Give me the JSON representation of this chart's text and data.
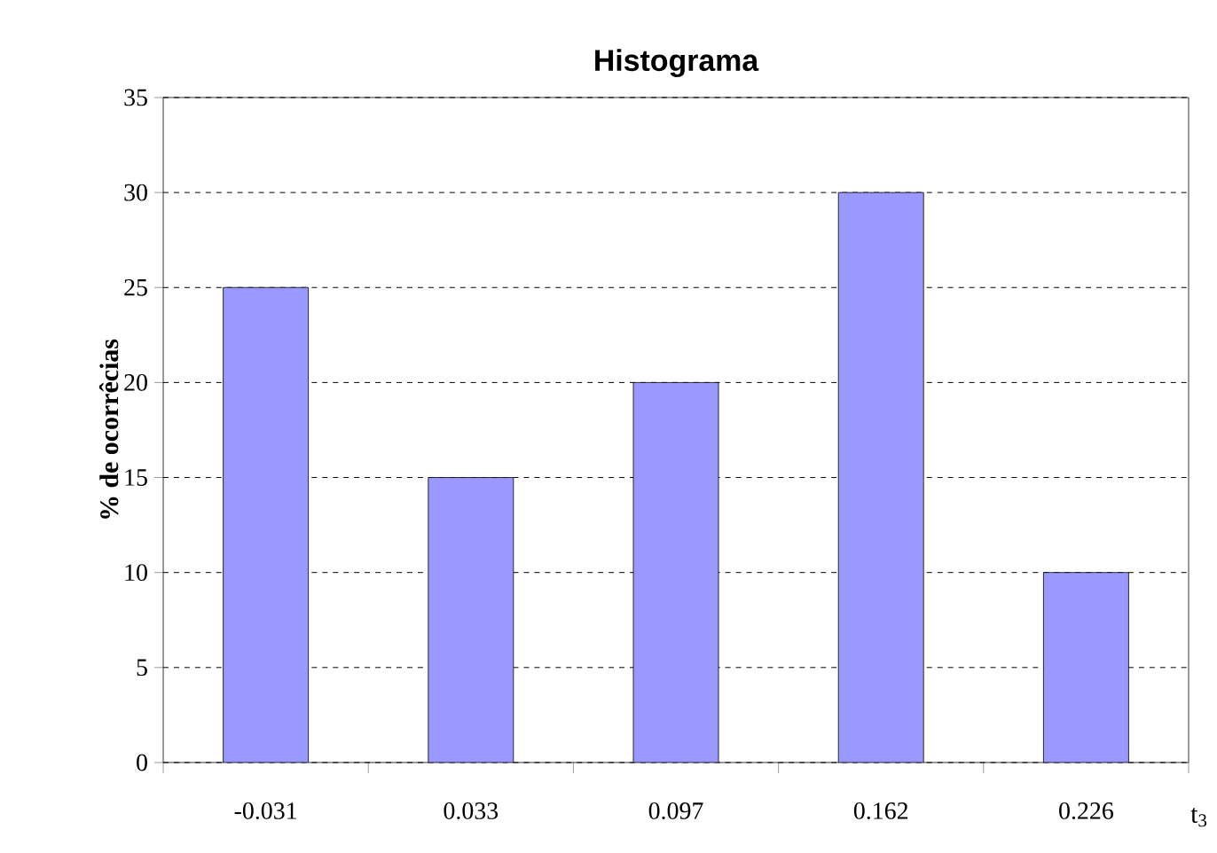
{
  "chart_data": {
    "type": "bar",
    "title": "Histograma",
    "xlabel": "t$_{3}$",
    "ylabel": "% de ocorrêcias",
    "categories": [
      "-0.031",
      "0.033",
      "0.097",
      "0.162",
      "0.226"
    ],
    "values": [
      25,
      15,
      20,
      30,
      10
    ],
    "color": "#9999ff",
    "ylim": [
      0,
      35
    ],
    "yticks": [
      0,
      5,
      10,
      15,
      20,
      25,
      30,
      35
    ],
    "grid": "y"
  }
}
